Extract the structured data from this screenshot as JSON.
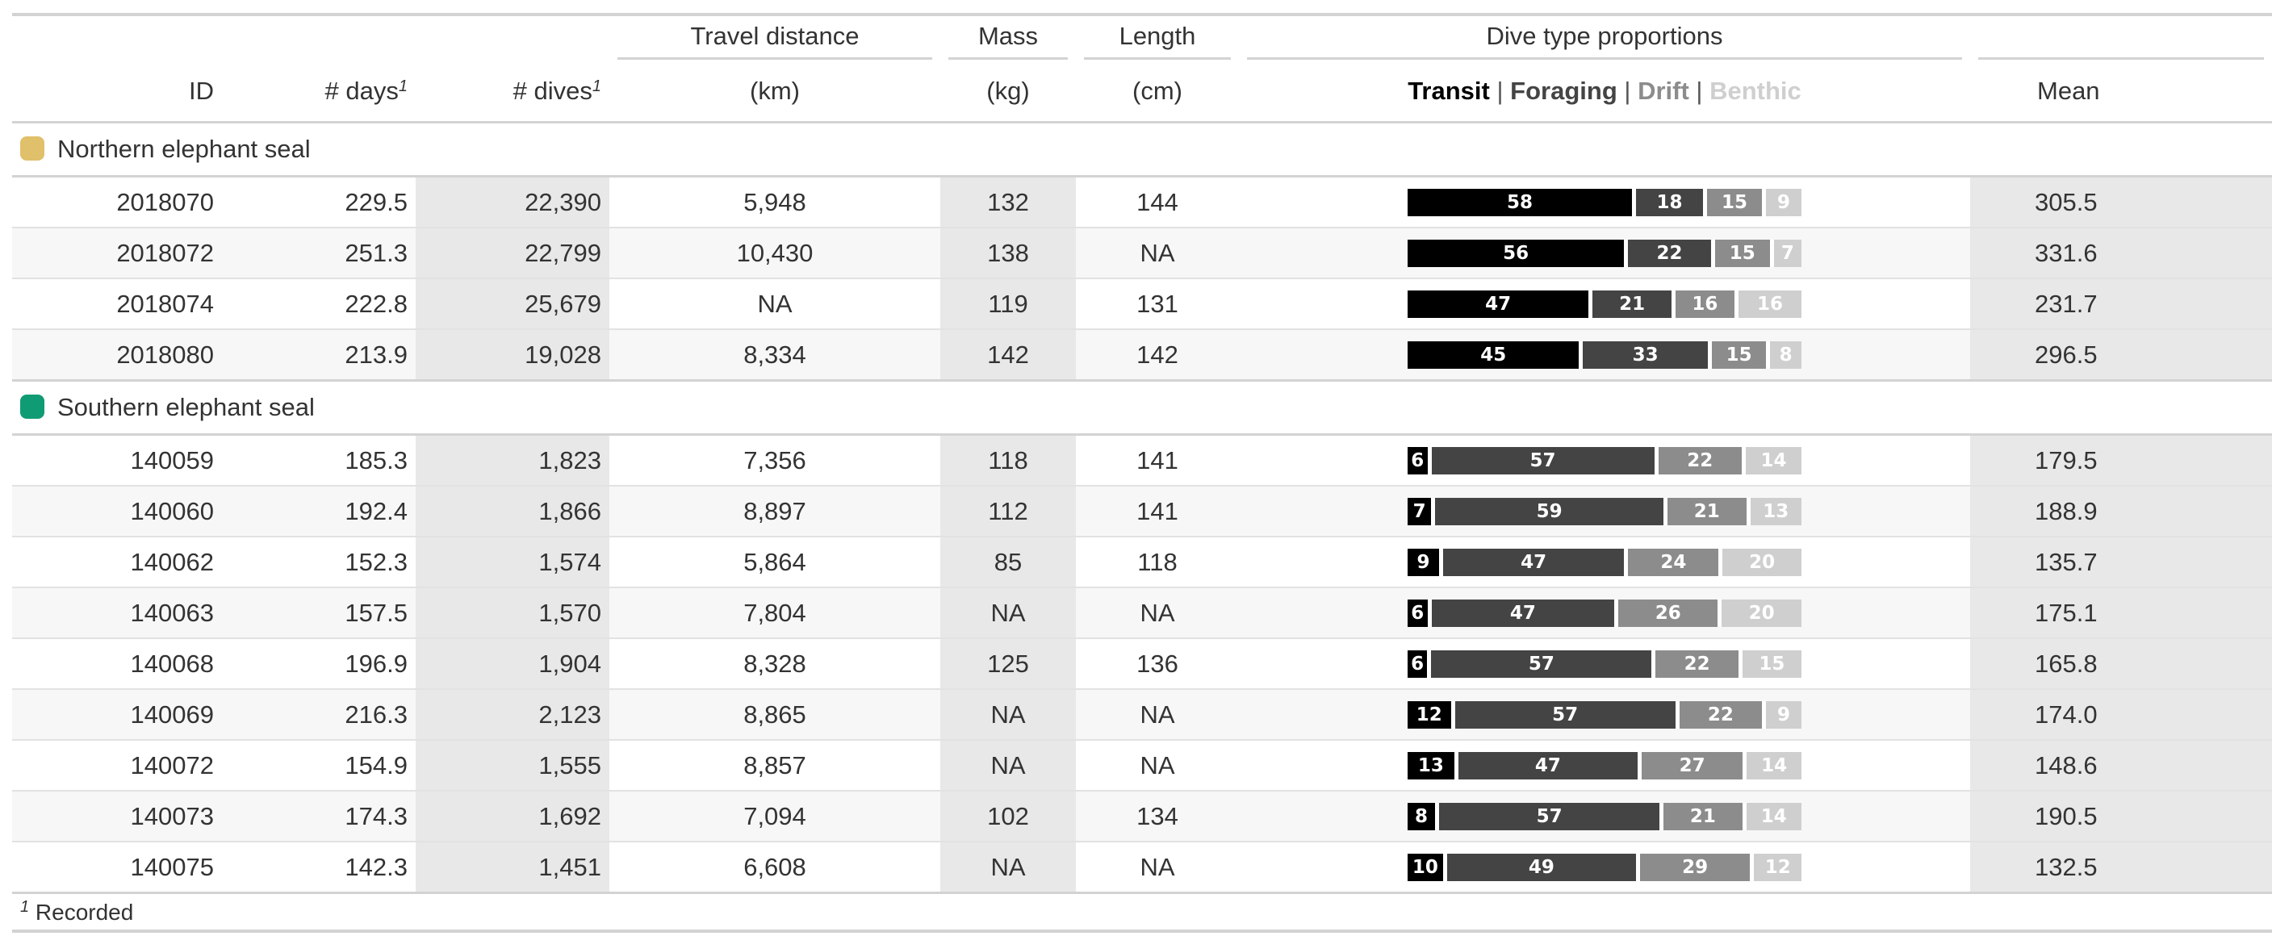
{
  "header": {
    "spanners": {
      "travel": "Travel distance",
      "mass": "Mass",
      "length": "Length",
      "props": "Dive type proportions"
    },
    "labels": {
      "id": "ID",
      "days": "# days",
      "dives": "# dives",
      "footnote_mark": "1",
      "dist_unit": "(km)",
      "mass_unit": "(kg)",
      "len_unit": "(cm)",
      "mean": "Mean"
    },
    "legend": {
      "transit": "Transit",
      "foraging": "Foraging",
      "drift": "Drift",
      "benthic": "Benthic",
      "separator": "|"
    }
  },
  "colors": {
    "northern": "#e0c06a",
    "southern": "#0f9b74",
    "transit": "#000000",
    "foraging": "#444444",
    "drift": "#8c8c8c",
    "benthic": "#cfcfcf"
  },
  "groups": [
    {
      "name": "Northern elephant seal",
      "color": "#e0c06a",
      "rows": [
        {
          "id": "2018070",
          "days": "229.5",
          "dives": "22,390",
          "dist": "5,948",
          "mass": "132",
          "length": "144",
          "props": [
            58,
            18,
            15,
            9
          ],
          "mean": "305.5"
        },
        {
          "id": "2018072",
          "days": "251.3",
          "dives": "22,799",
          "dist": "10,430",
          "mass": "138",
          "length": "NA",
          "props": [
            56,
            22,
            15,
            7
          ],
          "mean": "331.6"
        },
        {
          "id": "2018074",
          "days": "222.8",
          "dives": "25,679",
          "dist": "NA",
          "mass": "119",
          "length": "131",
          "props": [
            47,
            21,
            16,
            16
          ],
          "mean": "231.7"
        },
        {
          "id": "2018080",
          "days": "213.9",
          "dives": "19,028",
          "dist": "8,334",
          "mass": "142",
          "length": "142",
          "props": [
            45,
            33,
            15,
            8
          ],
          "mean": "296.5"
        }
      ]
    },
    {
      "name": "Southern elephant seal",
      "color": "#0f9b74",
      "rows": [
        {
          "id": "140059",
          "days": "185.3",
          "dives": "1,823",
          "dist": "7,356",
          "mass": "118",
          "length": "141",
          "props": [
            6,
            57,
            22,
            14
          ],
          "mean": "179.5"
        },
        {
          "id": "140060",
          "days": "192.4",
          "dives": "1,866",
          "dist": "8,897",
          "mass": "112",
          "length": "141",
          "props": [
            7,
            59,
            21,
            13
          ],
          "mean": "188.9"
        },
        {
          "id": "140062",
          "days": "152.3",
          "dives": "1,574",
          "dist": "5,864",
          "mass": "85",
          "length": "118",
          "props": [
            9,
            47,
            24,
            20
          ],
          "mean": "135.7"
        },
        {
          "id": "140063",
          "days": "157.5",
          "dives": "1,570",
          "dist": "7,804",
          "mass": "NA",
          "length": "NA",
          "props": [
            6,
            47,
            26,
            20
          ],
          "mean": "175.1"
        },
        {
          "id": "140068",
          "days": "196.9",
          "dives": "1,904",
          "dist": "8,328",
          "mass": "125",
          "length": "136",
          "props": [
            6,
            57,
            22,
            15
          ],
          "mean": "165.8"
        },
        {
          "id": "140069",
          "days": "216.3",
          "dives": "2,123",
          "dist": "8,865",
          "mass": "NA",
          "length": "NA",
          "props": [
            12,
            57,
            22,
            9
          ],
          "mean": "174.0"
        },
        {
          "id": "140072",
          "days": "154.9",
          "dives": "1,555",
          "dist": "8,857",
          "mass": "NA",
          "length": "NA",
          "props": [
            13,
            47,
            27,
            14
          ],
          "mean": "148.6"
        },
        {
          "id": "140073",
          "days": "174.3",
          "dives": "1,692",
          "dist": "7,094",
          "mass": "102",
          "length": "134",
          "props": [
            8,
            57,
            21,
            14
          ],
          "mean": "190.5"
        },
        {
          "id": "140075",
          "days": "142.3",
          "dives": "1,451",
          "dist": "6,608",
          "mass": "NA",
          "length": "NA",
          "props": [
            10,
            49,
            29,
            12
          ],
          "mean": "132.5"
        }
      ]
    }
  ],
  "footnote": {
    "mark": "1",
    "text": "Recorded"
  }
}
